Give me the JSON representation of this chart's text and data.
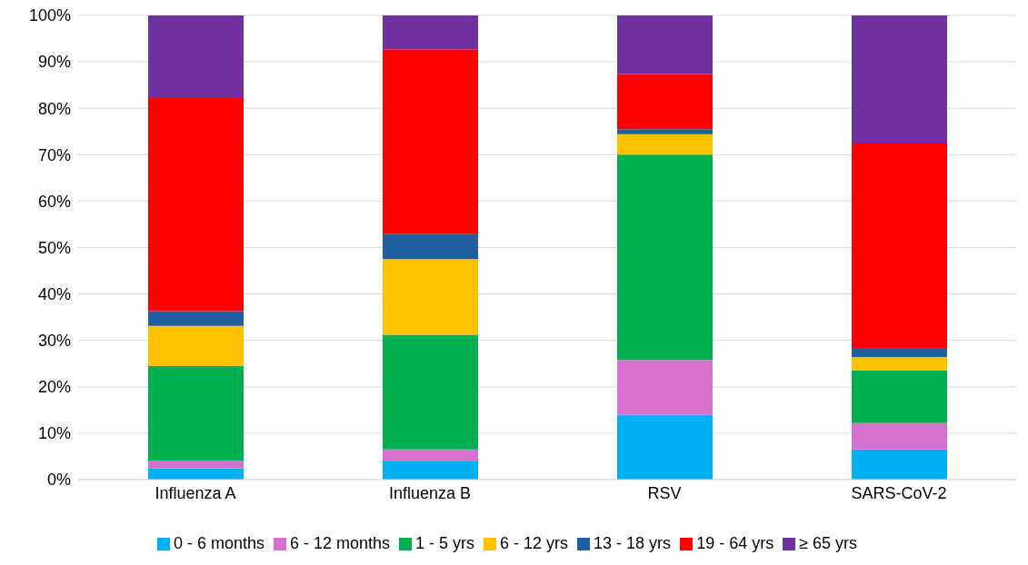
{
  "chart_data": {
    "type": "bar",
    "stacked": true,
    "categories": [
      "Influenza A",
      "Influenza B",
      "RSV",
      "SARS-CoV-2"
    ],
    "series": [
      {
        "name": "0 - 6 months",
        "color": "#00b0f0",
        "values": [
          2.4,
          3.9,
          14.0,
          6.5
        ]
      },
      {
        "name": "6 - 12 months",
        "color": "#d76fcf",
        "values": [
          1.7,
          2.6,
          11.8,
          5.7
        ]
      },
      {
        "name": "1 - 5 yrs",
        "color": "#00b050",
        "values": [
          20.4,
          24.7,
          44.2,
          11.3
        ]
      },
      {
        "name": "6 - 12 yrs",
        "color": "#ffc000",
        "values": [
          8.6,
          16.3,
          4.4,
          2.9
        ]
      },
      {
        "name": "13 - 18 yrs",
        "color": "#1f5f9f",
        "values": [
          3.2,
          5.4,
          1.1,
          2.0
        ]
      },
      {
        "name": "19 - 64 yrs",
        "color": "#ff0000",
        "values": [
          45.9,
          39.8,
          11.9,
          44.0
        ]
      },
      {
        "name": "≥ 65 yrs",
        "color": "#7030a0",
        "values": [
          17.8,
          7.3,
          12.6,
          27.6
        ]
      }
    ],
    "ylim": [
      0,
      100
    ],
    "yticks": [
      {
        "value": 0,
        "label": "0%"
      },
      {
        "value": 10,
        "label": "10%"
      },
      {
        "value": 20,
        "label": "20%"
      },
      {
        "value": 30,
        "label": "30%"
      },
      {
        "value": 40,
        "label": "40%"
      },
      {
        "value": 50,
        "label": "50%"
      },
      {
        "value": 60,
        "label": "60%"
      },
      {
        "value": 70,
        "label": "70%"
      },
      {
        "value": 80,
        "label": "80%"
      },
      {
        "value": 90,
        "label": "90%"
      },
      {
        "value": 100,
        "label": "100%"
      }
    ],
    "grid": "y",
    "legend": "bottom"
  }
}
